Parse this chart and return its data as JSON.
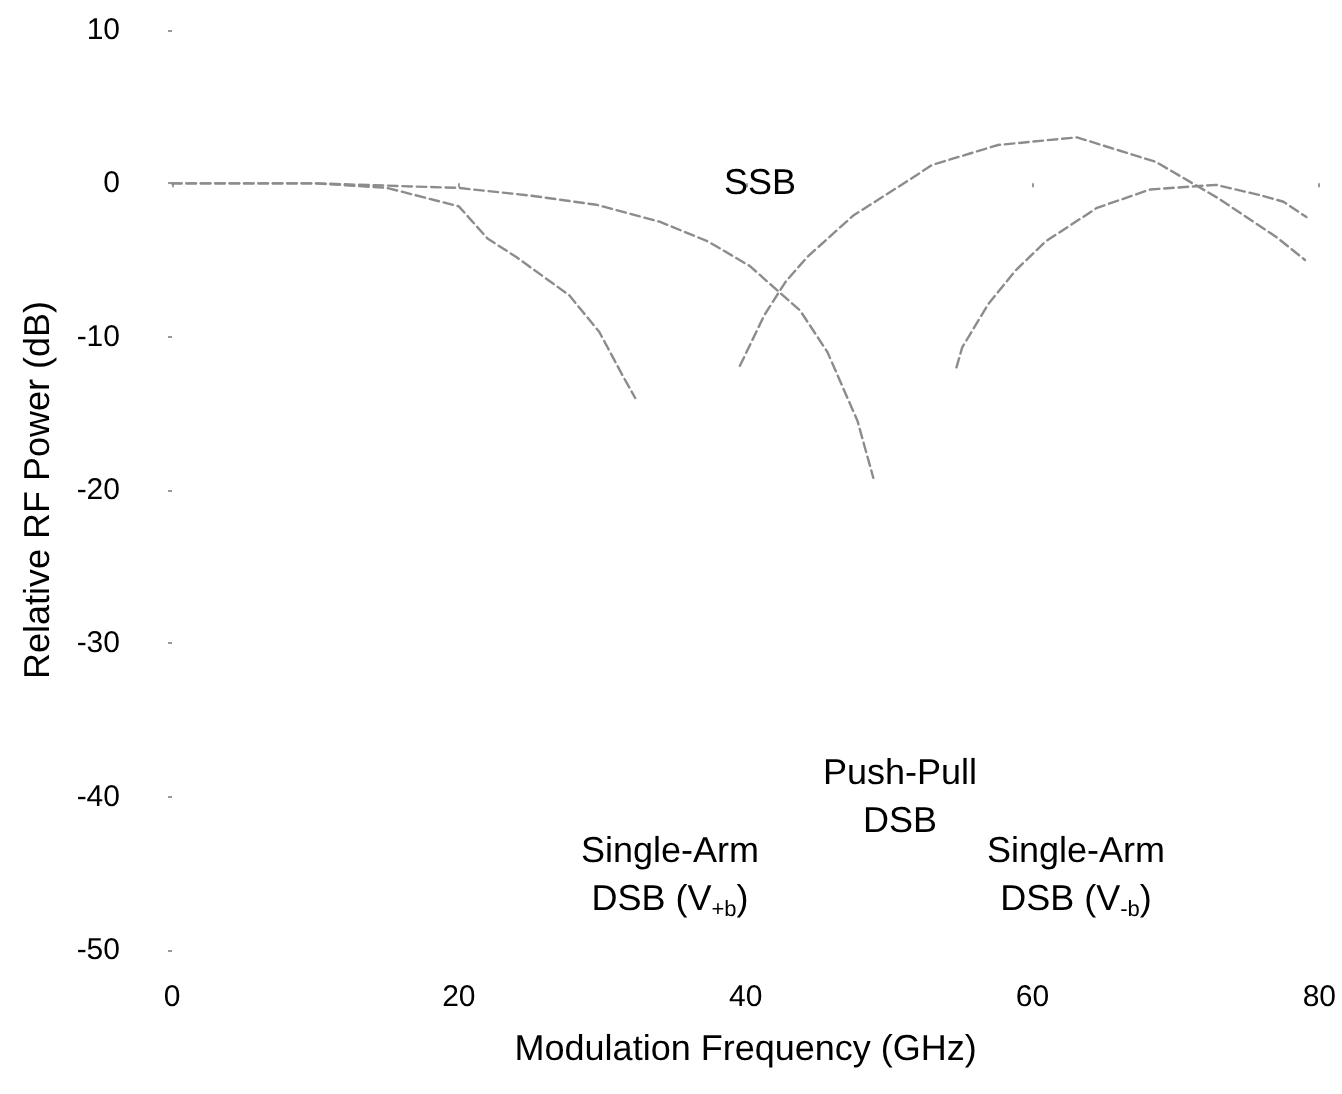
{
  "chart_data": {
    "type": "line",
    "xlabel": "Modulation Frequency (GHz)",
    "ylabel": "Relative RF Power (dB)",
    "xlim": [
      0,
      80
    ],
    "xticks": [
      0,
      20,
      40,
      60,
      80
    ],
    "ylim": [
      -50,
      10
    ],
    "yticks": [
      -50,
      -40,
      -30,
      -20,
      -10,
      0,
      10
    ],
    "grid": false,
    "marker": "none",
    "line_style": "dashed",
    "series": [
      {
        "color": "#8c8c8c",
        "x": [
          0,
          10,
          15,
          20,
          22,
          24,
          27.7,
          29.8,
          31.4,
          32.3
        ],
        "values": [
          0,
          0,
          -0.3,
          -1.5,
          -3.6,
          -4.8,
          -7.3,
          -9.7,
          -12.5,
          -14
        ]
      },
      {
        "color": "#8c8c8c",
        "x": [
          0,
          10,
          20,
          25,
          29.6,
          34,
          37.4,
          40.3,
          43.8,
          45.7,
          47.8,
          48.9
        ],
        "values": [
          0,
          0,
          -0.3,
          -0.8,
          -1.4,
          -2.5,
          -3.8,
          -5.4,
          -8.3,
          -11,
          -15.5,
          -19.2
        ]
      },
      {
        "color": "#8c8c8c",
        "x": [
          39.6,
          41.3,
          42.8,
          44.3,
          47.5,
          51.2,
          53,
          57.6,
          63.1,
          68.6,
          73,
          77,
          79
        ],
        "values": [
          -11.9,
          -8.6,
          -6.4,
          -4.8,
          -2.1,
          0.1,
          1.2,
          2.5,
          3,
          1.4,
          -1,
          -3.5,
          -5
        ]
      },
      {
        "color": "#8c8c8c",
        "x": [
          54.7,
          55.1,
          56.9,
          58.8,
          60.9,
          64.5,
          68.2,
          72.8,
          76,
          77.5,
          79.1
        ],
        "values": [
          -12,
          -10.7,
          -7.9,
          -5.7,
          -3.8,
          -1.6,
          -0.4,
          -0.1,
          -0.8,
          -1.2,
          -2.2
        ]
      }
    ],
    "annotations": [
      "SSB",
      "Single-Arm\nDSB (V$_{+b}$)",
      "Push-Pull\nDSB",
      "Single-Arm\nDSB (V$_{-b}$)"
    ]
  }
}
